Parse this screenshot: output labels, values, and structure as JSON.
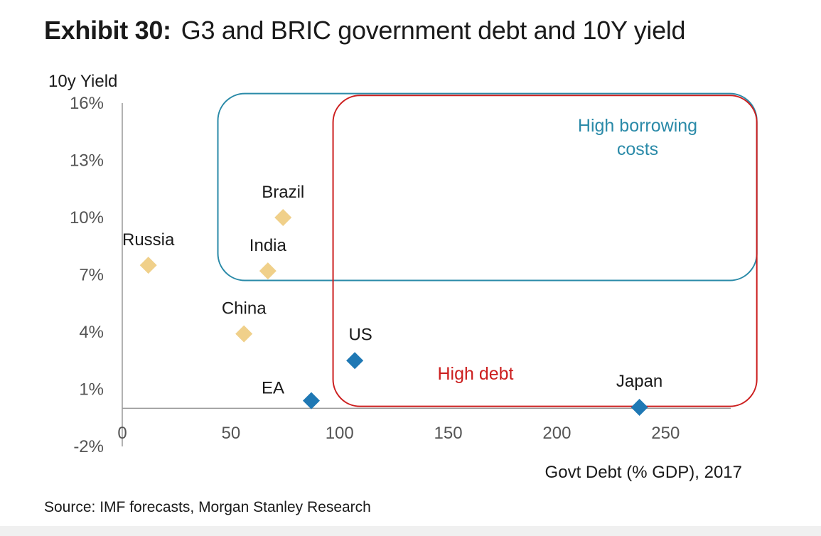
{
  "title": {
    "label": "Exhibit 30:",
    "text": "G3 and BRIC government debt and 10Y yield"
  },
  "source": "Source: IMF forecasts, Morgan Stanley Research",
  "colors": {
    "bric": "#f0d08a",
    "g3": "#1f78b4",
    "high_borrowing": "#2a8aa8",
    "high_debt": "#cc1f1f",
    "axis": "#999999"
  },
  "chart_data": {
    "type": "scatter",
    "title": "G3 and BRIC government debt and 10Y yield",
    "xlabel": "Govt Debt (% GDP), 2017",
    "ylabel": "10y Yield",
    "xlim": [
      0,
      280
    ],
    "ylim": [
      -2,
      16
    ],
    "x_ticks": [
      0,
      50,
      100,
      150,
      200,
      250
    ],
    "x_tick_labels": [
      "0",
      "50",
      "100",
      "150",
      "200",
      "250"
    ],
    "y_ticks": [
      16,
      13,
      10,
      7,
      4,
      1,
      -2
    ],
    "y_tick_labels": [
      "16%",
      "13%",
      "10%",
      "7%",
      "4%",
      "1%",
      "-2%"
    ],
    "series": [
      {
        "name": "BRIC",
        "color": "#f0d08a",
        "points": [
          {
            "label": "Brazil",
            "x": 74,
            "y": 10.0
          },
          {
            "label": "India",
            "x": 67,
            "y": 7.2
          },
          {
            "label": "Russia",
            "x": 12,
            "y": 7.5
          },
          {
            "label": "China",
            "x": 56,
            "y": 3.9
          }
        ]
      },
      {
        "name": "G3",
        "color": "#1f78b4",
        "points": [
          {
            "label": "US",
            "x": 107,
            "y": 2.5
          },
          {
            "label": "EA",
            "x": 87,
            "y": 0.4
          },
          {
            "label": "Japan",
            "x": 238,
            "y": 0.05
          }
        ]
      }
    ],
    "regions": [
      {
        "label_lines": [
          "High borrowing",
          "costs"
        ],
        "color": "#2a8aa8",
        "x_from": 44,
        "x_to": 292,
        "y_from": 6.7,
        "y_to": 16.5
      },
      {
        "label_lines": [
          "High debt"
        ],
        "color": "#cc1f1f",
        "x_from": 97,
        "x_to": 292,
        "y_from": 0.1,
        "y_to": 16.4
      }
    ]
  }
}
